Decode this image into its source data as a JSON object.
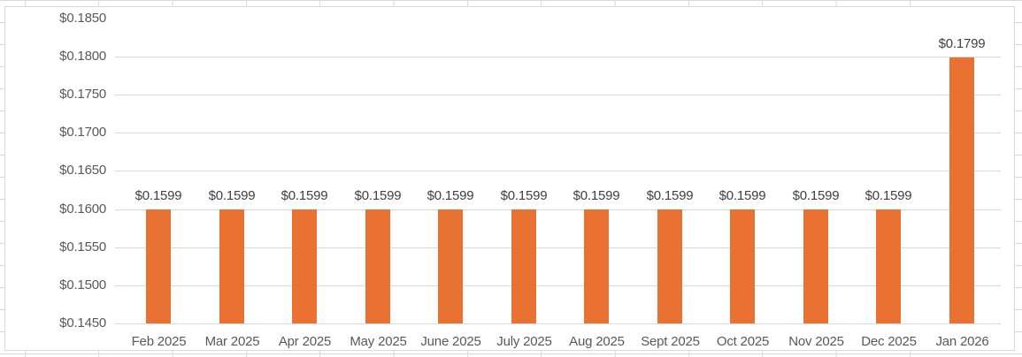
{
  "chart_data": {
    "type": "bar",
    "title": "",
    "categories": [
      "Feb 2025",
      "Mar 2025",
      "Apr 2025",
      "May 2025",
      "June 2025",
      "July 2025",
      "Aug 2025",
      "Sept 2025",
      "Oct 2025",
      "Nov 2025",
      "Dec 2025",
      "Jan 2026"
    ],
    "values": [
      0.1599,
      0.1599,
      0.1599,
      0.1599,
      0.1599,
      0.1599,
      0.1599,
      0.1599,
      0.1599,
      0.1599,
      0.1599,
      0.1799
    ],
    "data_labels": [
      "$0.1599",
      "$0.1599",
      "$0.1599",
      "$0.1599",
      "$0.1599",
      "$0.1599",
      "$0.1599",
      "$0.1599",
      "$0.1599",
      "$0.1599",
      "$0.1599",
      "$0.1799"
    ],
    "xlabel": "",
    "ylabel": "",
    "ylim": [
      0.145,
      0.185
    ],
    "y_ticks": [
      0.145,
      0.15,
      0.155,
      0.16,
      0.165,
      0.17,
      0.175,
      0.18,
      0.185
    ],
    "y_tick_labels": [
      "$0.1450",
      "$0.1500",
      "$0.1550",
      "$0.1600",
      "$0.1650",
      "$0.1700",
      "$0.1750",
      "$0.1800",
      "$0.1850"
    ],
    "grid": true,
    "legend": false,
    "colors": {
      "bar": "#E97132",
      "gridline": "#D9D9D9",
      "chart_border": "#D9D9D9",
      "sheet_gridline": "#D8D8D8",
      "axis_label": "#595959",
      "data_label": "#404040",
      "background": "#FFFFFF"
    }
  }
}
